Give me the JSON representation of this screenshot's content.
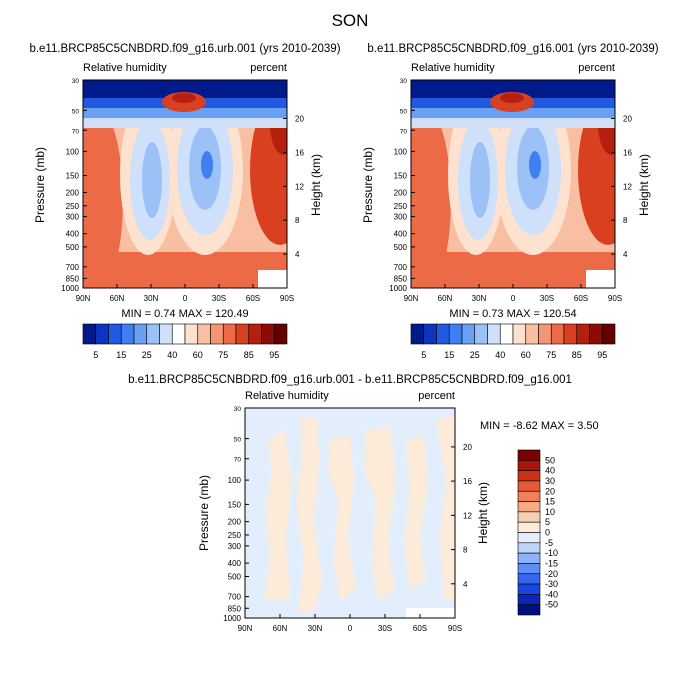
{
  "title": "SON",
  "colors": {
    "abs": [
      "#001a8c",
      "#0c33c2",
      "#2159e0",
      "#3e80f0",
      "#6aa0f3",
      "#9cc1f7",
      "#cfe0fb",
      "#ffffff",
      "#fde2d0",
      "#f9bfa2",
      "#f49573",
      "#ec6a45",
      "#d9401f",
      "#b5200e",
      "#8c0b04",
      "#650000"
    ],
    "diff": [
      "#00107a",
      "#0d25b8",
      "#1a45e0",
      "#3566f0",
      "#5e8ef4",
      "#8db2f7",
      "#bcd3fa",
      "#e3eefc",
      "#fdebd9",
      "#f9cfb2",
      "#f5aa85",
      "#ef8058",
      "#e65735",
      "#cc3217",
      "#a8150a",
      "#7a0000"
    ]
  },
  "panels": {
    "left": {
      "title": "b.e11.BRCP85C5CNBDRD.f09_g16.urb.001 (yrs 2010-2039)",
      "var_label": "Relative humidity",
      "units": "percent",
      "stats": "MIN =   0.74  MAX = 120.49"
    },
    "right": {
      "title": "b.e11.BRCP85C5CNBDRD.f09_g16.001 (yrs 2010-2039)",
      "var_label": "Relative humidity",
      "units": "percent",
      "stats": "MIN =   0.73  MAX = 120.54"
    },
    "diff": {
      "title": "b.e11.BRCP85C5CNBDRD.f09_g16.urb.001 - b.e11.BRCP85C5CNBDRD.f09_g16.001",
      "var_label": "Relative humidity",
      "units": "percent",
      "stats": "MIN =  -8.62  MAX =   3.50"
    }
  },
  "chart_data": [
    {
      "type": "heatmap",
      "title": "b.e11.BRCP85C5CNBDRD.f09_g16.urb.001 (yrs 2010-2039)",
      "variable": "Relative humidity",
      "units": "percent",
      "xlabel": "",
      "ylabel": "Pressure (mb)",
      "y2label": "Height (km)",
      "x_ticks": [
        "90N",
        "60N",
        "30N",
        "0",
        "30S",
        "60S",
        "90S"
      ],
      "y_ticks": [
        30,
        50,
        70,
        100,
        150,
        200,
        250,
        300,
        400,
        500,
        700,
        850,
        1000
      ],
      "y2_ticks": [
        20,
        16,
        12,
        8,
        4
      ],
      "min": 0.74,
      "max": 120.49,
      "levels": [
        5,
        10,
        15,
        20,
        25,
        30,
        40,
        50,
        60,
        65,
        70,
        75,
        80,
        85,
        90,
        95
      ]
    },
    {
      "type": "heatmap",
      "title": "b.e11.BRCP85C5CNBDRD.f09_g16.001 (yrs 2010-2039)",
      "variable": "Relative humidity",
      "units": "percent",
      "xlabel": "",
      "ylabel": "Pressure (mb)",
      "y2label": "Height (km)",
      "x_ticks": [
        "90N",
        "60N",
        "30N",
        "0",
        "30S",
        "60S",
        "90S"
      ],
      "y_ticks": [
        30,
        50,
        70,
        100,
        150,
        200,
        250,
        300,
        400,
        500,
        700,
        850,
        1000
      ],
      "y2_ticks": [
        20,
        16,
        12,
        8,
        4
      ],
      "min": 0.73,
      "max": 120.54,
      "levels": [
        5,
        10,
        15,
        20,
        25,
        30,
        40,
        50,
        60,
        65,
        70,
        75,
        80,
        85,
        90,
        95
      ]
    },
    {
      "type": "heatmap",
      "title": "b.e11.BRCP85C5CNBDRD.f09_g16.urb.001 - b.e11.BRCP85C5CNBDRD.f09_g16.001",
      "variable": "Relative humidity",
      "units": "percent",
      "xlabel": "",
      "ylabel": "Pressure (mb)",
      "y2label": "Height (km)",
      "x_ticks": [
        "90N",
        "60N",
        "30N",
        "0",
        "30S",
        "60S",
        "90S"
      ],
      "y_ticks": [
        30,
        50,
        70,
        100,
        150,
        200,
        250,
        300,
        400,
        500,
        700,
        850,
        1000
      ],
      "y2_ticks": [
        20,
        16,
        12,
        8,
        4
      ],
      "min": -8.62,
      "max": 3.5,
      "levels": [
        -50,
        -40,
        -30,
        -20,
        -15,
        -10,
        -5,
        0,
        5,
        10,
        15,
        20,
        30,
        40,
        50
      ]
    }
  ],
  "colorbars": {
    "abs_labels": [
      "5",
      "15",
      "25",
      "40",
      "60",
      "75",
      "85",
      "95"
    ],
    "diff_labels": [
      "50",
      "40",
      "30",
      "20",
      "15",
      "10",
      "5",
      "0",
      "-5",
      "-10",
      "-15",
      "-20",
      "-30",
      "-40",
      "-50"
    ]
  }
}
